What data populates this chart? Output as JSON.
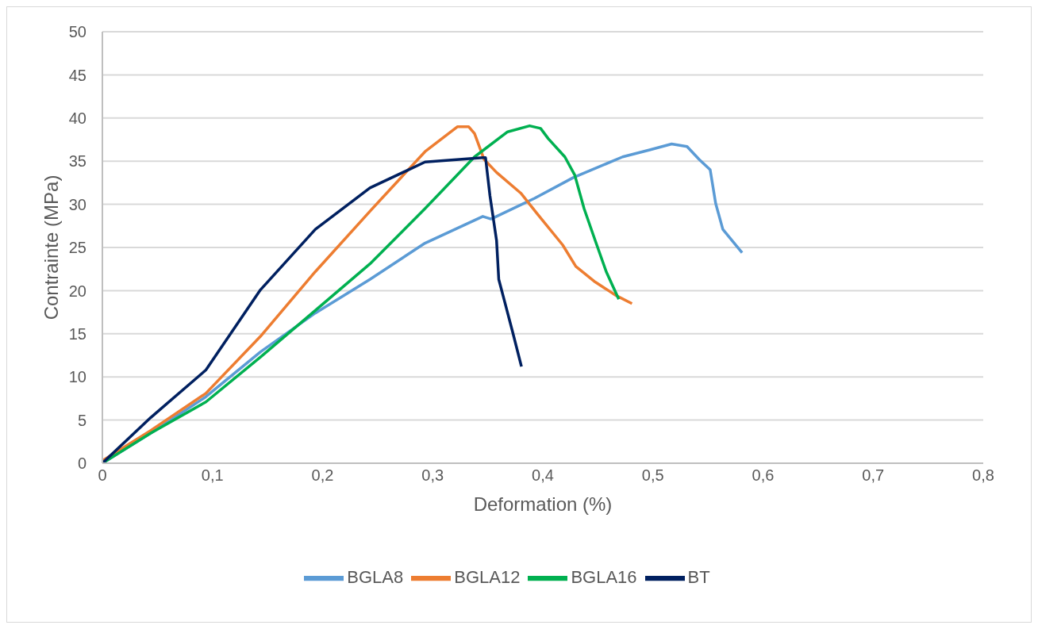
{
  "chart_data": {
    "type": "line",
    "xlabel": "Deformation  (%)",
    "ylabel": "Contrainte (MPa)",
    "xlim": [
      0,
      0.8
    ],
    "xticks": [
      {
        "value": 0,
        "label": "0"
      },
      {
        "value": 0.1,
        "label": "0,1"
      },
      {
        "value": 0.2,
        "label": "0,2"
      },
      {
        "value": 0.3,
        "label": "0,3"
      },
      {
        "value": 0.4,
        "label": "0,4"
      },
      {
        "value": 0.5,
        "label": "0,5"
      },
      {
        "value": 0.6,
        "label": "0,6"
      },
      {
        "value": 0.7,
        "label": "0,7"
      },
      {
        "value": 0.8,
        "label": "0,8"
      }
    ],
    "ylim": [
      0,
      50
    ],
    "yticks": [
      0,
      5,
      10,
      15,
      20,
      25,
      30,
      35,
      40,
      45,
      50
    ],
    "grid": "y",
    "legend": "bottom",
    "marker": "none",
    "line_style": "solid",
    "series": [
      {
        "name": "BGLA8",
        "color": "#5b9bd5",
        "x": [
          0,
          0.044,
          0.094,
          0.1436,
          0.1934,
          0.243,
          0.293,
          0.3455,
          0.353,
          0.3925,
          0.4277,
          0.4725,
          0.497,
          0.517,
          0.531,
          0.542,
          0.552,
          0.557,
          0.5635,
          0.581
        ],
        "values": [
          0,
          3.5,
          7.7,
          12.9,
          17.4,
          21.3,
          25.5,
          28.6,
          28.3,
          30.7,
          33.1,
          35.5,
          36.3,
          37,
          36.7,
          35.2,
          34,
          30.1,
          27.1,
          24.4
        ]
      },
      {
        "name": "BGLA12",
        "color": "#ed7d31",
        "x": [
          0,
          0.044,
          0.094,
          0.1436,
          0.1934,
          0.243,
          0.293,
          0.3226,
          0.3326,
          0.338,
          0.3467,
          0.358,
          0.38,
          0.395,
          0.418,
          0.43,
          0.4476,
          0.467,
          0.481
        ],
        "values": [
          0.3,
          3.8,
          8.1,
          14.7,
          22.2,
          29.2,
          36.1,
          39,
          39,
          38.2,
          35.2,
          33.7,
          31.3,
          28.9,
          25.3,
          22.8,
          21,
          19.4,
          18.5
        ]
      },
      {
        "name": "BGLA16",
        "color": "#00b050",
        "x": [
          0,
          0.044,
          0.094,
          0.1436,
          0.1934,
          0.243,
          0.293,
          0.338,
          0.368,
          0.388,
          0.398,
          0.405,
          0.42,
          0.429,
          0.4375,
          0.4476,
          0.4576,
          0.469
        ],
        "values": [
          0,
          3.5,
          7.1,
          12.3,
          17.7,
          23.1,
          29.5,
          35.5,
          38.4,
          39.1,
          38.8,
          37.6,
          35.5,
          33.4,
          29.5,
          25.8,
          22.2,
          19
        ]
      },
      {
        "name": "BT",
        "color": "#002060",
        "x": [
          0,
          0.044,
          0.094,
          0.1436,
          0.1934,
          0.243,
          0.293,
          0.3455,
          0.348,
          0.352,
          0.358,
          0.36,
          0.3656,
          0.373,
          0.3806
        ],
        "values": [
          0,
          5.3,
          10.8,
          20.1,
          27.1,
          31.9,
          34.9,
          35.4,
          35.4,
          31,
          25.8,
          21.3,
          18.6,
          15,
          11.2
        ]
      }
    ]
  }
}
